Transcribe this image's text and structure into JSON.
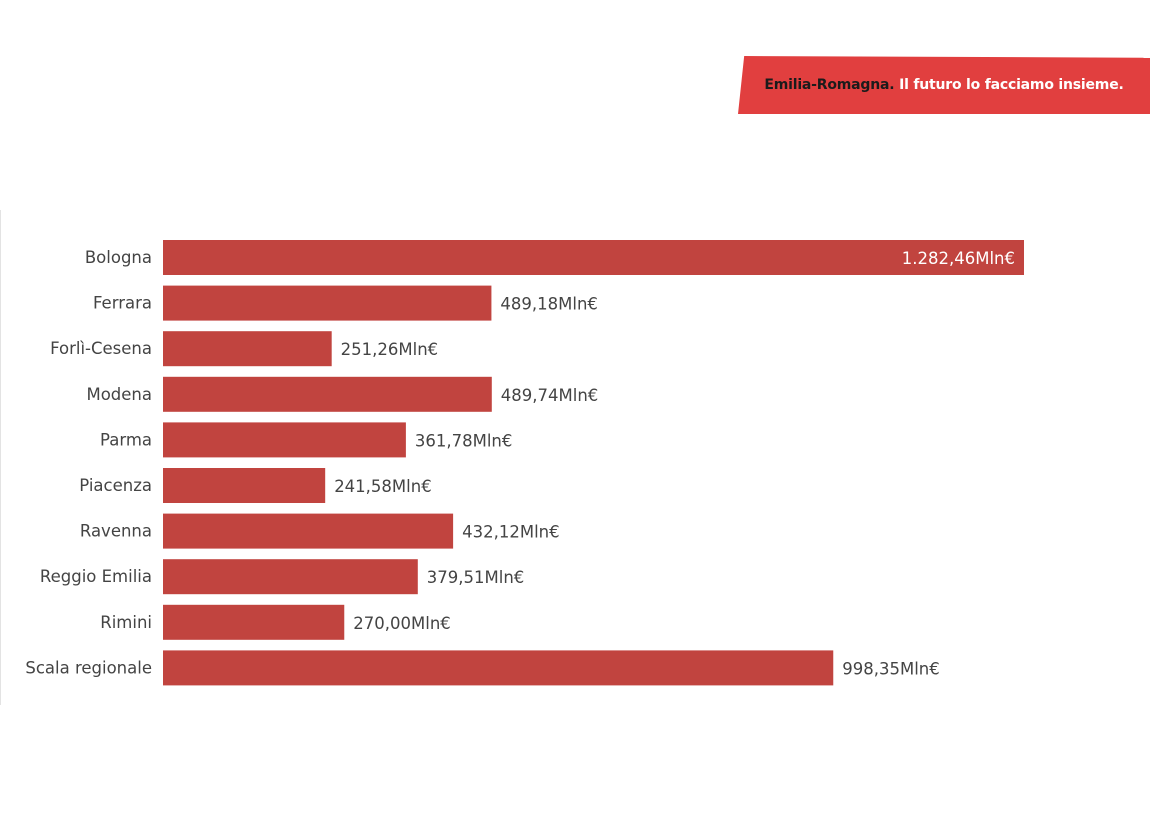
{
  "banner": {
    "brand": "Emilia-Romagna.",
    "tagline": "Il futuro lo facciamo insieme.",
    "background_color": "#e13f3f"
  },
  "chart_data": {
    "type": "bar",
    "orientation": "horizontal",
    "title": "",
    "xlabel": "",
    "ylabel": "",
    "xlim": [
      0,
      1282.46
    ],
    "grid": false,
    "bar_color": "#c1443f",
    "categories": [
      "Bologna",
      "Ferrara",
      "Forlì-Cesena",
      "Modena",
      "Parma",
      "Piacenza",
      "Ravenna",
      "Reggio Emilia",
      "Rimini",
      "Scala regionale"
    ],
    "values": [
      1282.46,
      489.18,
      251.26,
      489.74,
      361.78,
      241.58,
      432.12,
      379.51,
      270.0,
      998.35
    ],
    "value_labels": [
      "1.282,46Mln€",
      "489,18Mln€",
      "251,26Mln€",
      "489,74Mln€",
      "361,78Mln€",
      "241,58Mln€",
      "432,12Mln€",
      "379,51Mln€",
      "270,00Mln€",
      "998,35Mln€"
    ],
    "label_color_inside": "#ffffff",
    "label_color_outside": "#444444"
  }
}
